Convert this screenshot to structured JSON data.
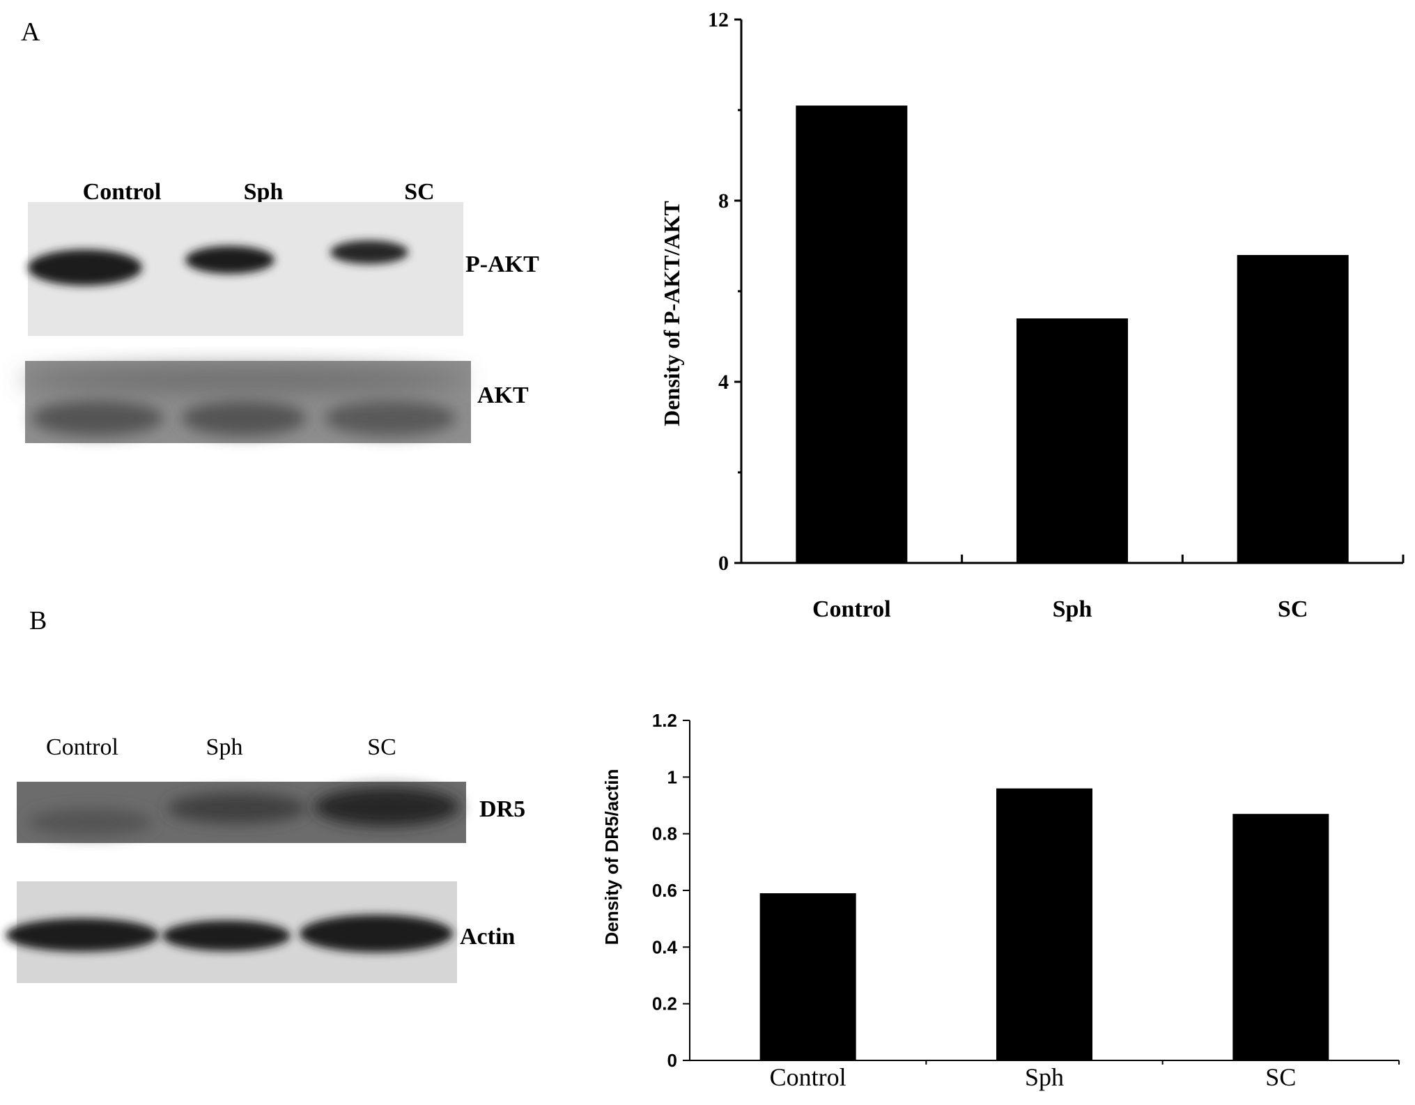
{
  "panels": {
    "a_label": "A",
    "b_label": "B"
  },
  "blot_a": {
    "lanes": [
      "Control",
      "Sph",
      "SC"
    ],
    "band_top_label": "P-AKT",
    "band_bottom_label": "AKT"
  },
  "blot_b": {
    "lanes": [
      "Control",
      "Sph",
      "SC"
    ],
    "band_top_label": "DR5",
    "band_bottom_label": "Actin"
  },
  "chart_data": [
    {
      "id": "A",
      "type": "bar",
      "categories": [
        "Control",
        "Sph",
        "SC"
      ],
      "values": [
        10.1,
        5.4,
        6.8
      ],
      "ylabel": "Density of P-AKT/AKT",
      "xlabel": "",
      "ylim": [
        0,
        12
      ],
      "yticks": [
        0,
        4,
        8,
        12
      ],
      "ytick_labels": [
        "0",
        "4",
        "8",
        "12"
      ],
      "minor_yticks": [
        2,
        6,
        10
      ],
      "grid": false,
      "bar_color": "#000000"
    },
    {
      "id": "B",
      "type": "bar",
      "categories": [
        "Control",
        "Sph",
        "SC"
      ],
      "values": [
        0.59,
        0.96,
        0.87
      ],
      "ylabel": "Density of DR5/actin",
      "xlabel": "",
      "ylim": [
        0,
        1.2
      ],
      "yticks": [
        0,
        0.2,
        0.4,
        0.6,
        0.8,
        1,
        1.2
      ],
      "ytick_labels": [
        "0",
        "0.2",
        "0.4",
        "0.6",
        "0.8",
        "1",
        "1.2"
      ],
      "grid": false,
      "bar_color": "#000000"
    }
  ]
}
